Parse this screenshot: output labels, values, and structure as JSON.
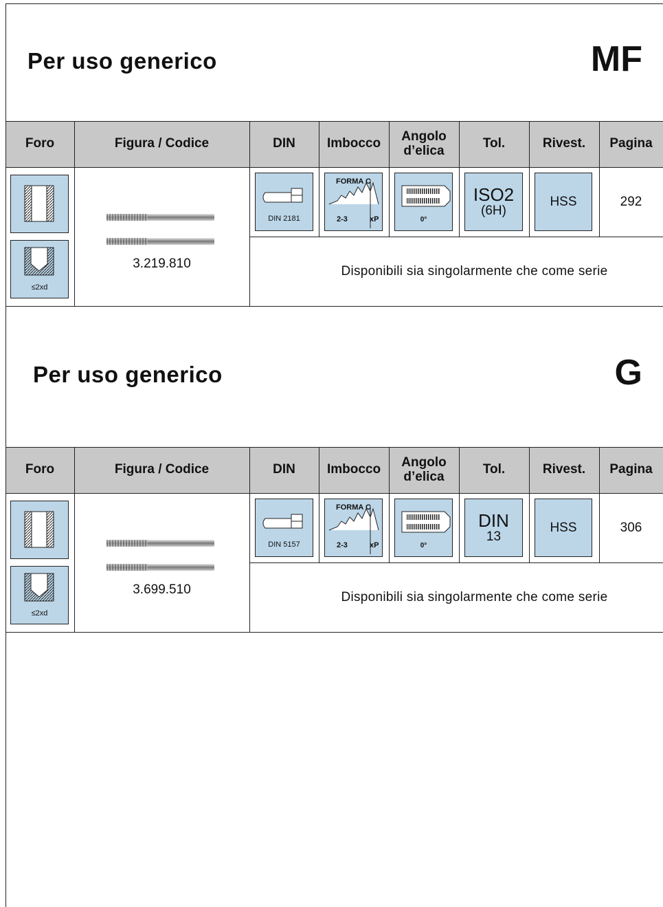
{
  "sections": [
    {
      "title": "Per uso generico",
      "code_letter": "MF",
      "headers": [
        "Foro",
        "Figura / Codice",
        "DIN",
        "Imbocco",
        "Angolo d’elica",
        "Tol.",
        "Rivest.",
        "Pagina"
      ],
      "foro_label": "≤2xd",
      "code": "3.219.810",
      "din": "DIN 2181",
      "imbocco": {
        "form": "FORMA C",
        "chamfer": "2-3",
        "pitch": "xP"
      },
      "angolo": "0°",
      "tol": [
        "ISO2",
        "(6H)"
      ],
      "rivest": "HSS",
      "pagina": "292",
      "note": "Disponibili sia singolarmente che come serie"
    },
    {
      "title": "Per uso generico",
      "code_letter": "G",
      "headers": [
        "Foro",
        "Figura / Codice",
        "DIN",
        "Imbocco",
        "Angolo d’elica",
        "Tol.",
        "Rivest.",
        "Pagina"
      ],
      "foro_label": "≤2xd",
      "code": "3.699.510",
      "din": "DIN 5157",
      "imbocco": {
        "form": "FORMA C",
        "chamfer": "2-3",
        "pitch": "xP"
      },
      "angolo": "0°",
      "tol": [
        "DIN",
        "13"
      ],
      "rivest": "HSS",
      "pagina": "306",
      "note": "Disponibili sia singolarmente che come serie"
    }
  ]
}
